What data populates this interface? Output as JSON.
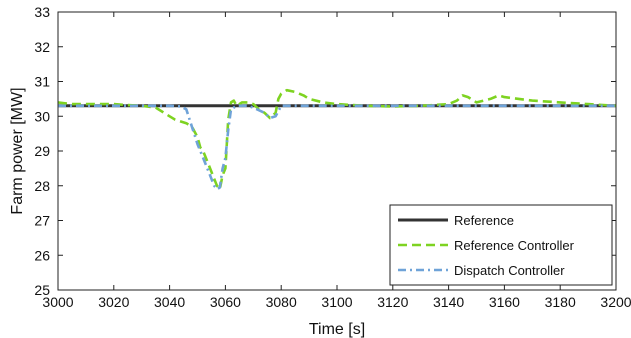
{
  "chart_data": {
    "type": "line",
    "title": "",
    "xlabel": "Time [s]",
    "ylabel": "Farm power [MW]",
    "xlim": [
      3000,
      3200
    ],
    "ylim": [
      25,
      33
    ],
    "xticks": [
      3000,
      3020,
      3040,
      3060,
      3080,
      3100,
      3120,
      3140,
      3160,
      3180,
      3200
    ],
    "yticks": [
      25,
      26,
      27,
      28,
      29,
      30,
      31,
      32,
      33
    ],
    "grid": false,
    "legend_position": "bottom-right",
    "series": [
      {
        "name": "Reference",
        "color": "#333333",
        "style": "solid",
        "x": [
          3000,
          3200
        ],
        "y": [
          30.3,
          30.3
        ]
      },
      {
        "name": "Reference Controller",
        "color": "#7ed321",
        "style": "dashed",
        "x": [
          3000,
          3005,
          3010,
          3015,
          3020,
          3025,
          3030,
          3035,
          3038,
          3040,
          3042,
          3044,
          3046,
          3048,
          3050,
          3051,
          3052,
          3054,
          3056,
          3057,
          3058,
          3059,
          3060,
          3061,
          3062,
          3063,
          3064,
          3066,
          3068,
          3070,
          3072,
          3074,
          3076,
          3078,
          3079,
          3080,
          3082,
          3085,
          3088,
          3090,
          3095,
          3100,
          3110,
          3120,
          3130,
          3140,
          3143,
          3145,
          3147,
          3150,
          3155,
          3158,
          3160,
          3170,
          3180,
          3190,
          3200
        ],
        "y": [
          30.4,
          30.35,
          30.35,
          30.35,
          30.35,
          30.32,
          30.3,
          30.25,
          30.1,
          30.0,
          29.9,
          29.85,
          29.8,
          29.7,
          29.4,
          29.1,
          29.0,
          28.6,
          28.2,
          28.0,
          27.9,
          28.3,
          28.5,
          29.9,
          30.4,
          30.45,
          30.3,
          30.4,
          30.4,
          30.35,
          30.2,
          30.1,
          29.95,
          30.1,
          30.5,
          30.65,
          30.75,
          30.7,
          30.6,
          30.5,
          30.4,
          30.35,
          30.3,
          30.28,
          30.3,
          30.35,
          30.45,
          30.6,
          30.55,
          30.4,
          30.5,
          30.6,
          30.55,
          30.45,
          30.4,
          30.35,
          30.3
        ]
      },
      {
        "name": "Dispatch Controller",
        "color": "#6fa3d8",
        "style": "dashdot",
        "x": [
          3000,
          3010,
          3020,
          3030,
          3040,
          3044,
          3046,
          3048,
          3050,
          3052,
          3054,
          3056,
          3057,
          3058,
          3059,
          3060,
          3061,
          3062,
          3064,
          3068,
          3070,
          3074,
          3076,
          3078,
          3080,
          3090,
          3100,
          3120,
          3140,
          3160,
          3180,
          3200
        ],
        "y": [
          30.3,
          30.3,
          30.3,
          30.3,
          30.3,
          30.28,
          30.2,
          29.7,
          29.2,
          28.8,
          28.4,
          28.0,
          27.9,
          27.95,
          28.5,
          28.8,
          29.6,
          30.2,
          30.3,
          30.3,
          30.25,
          30.1,
          29.95,
          30.0,
          30.3,
          30.3,
          30.3,
          30.3,
          30.3,
          30.3,
          30.3,
          30.3
        ]
      }
    ]
  }
}
